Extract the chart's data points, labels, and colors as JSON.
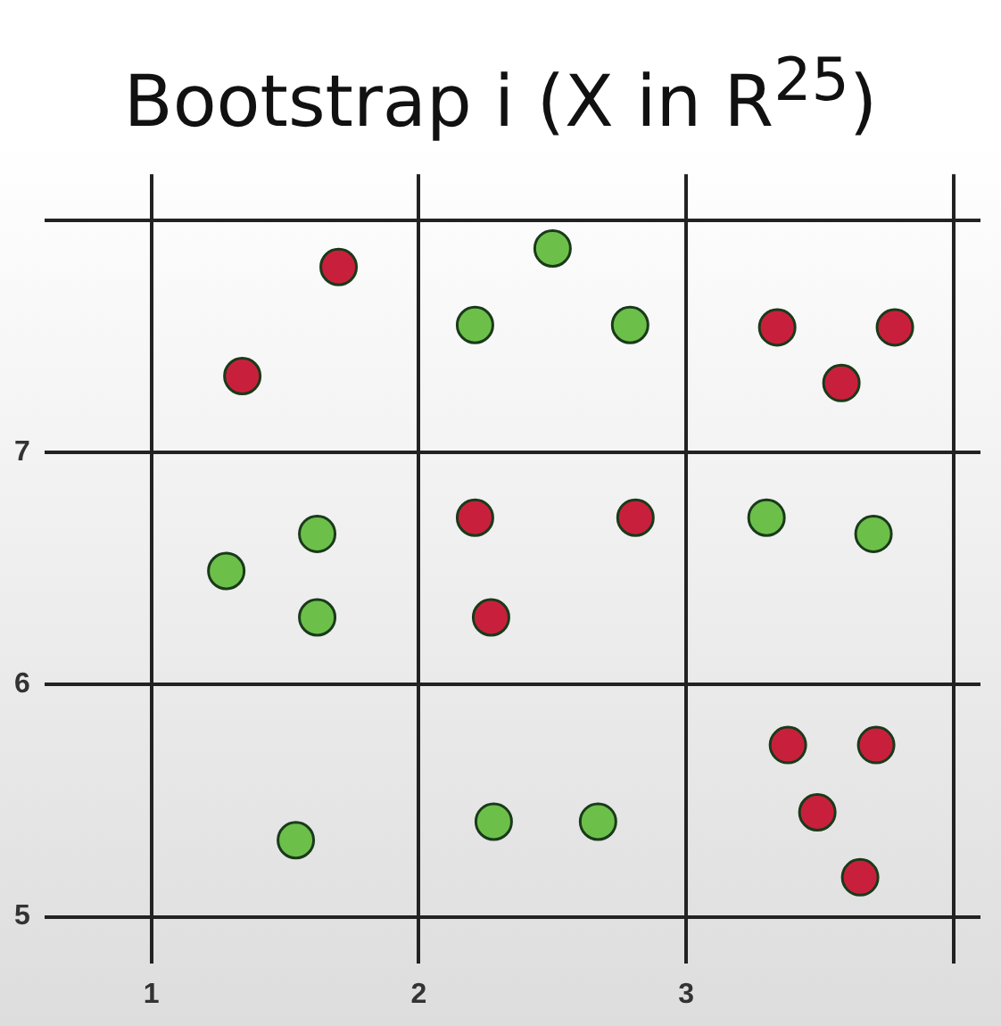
{
  "chart_data": {
    "type": "scatter",
    "title": "Bootstrap i (X in R$^{25}$)",
    "xlim": [
      0.6,
      4.1
    ],
    "ylim": [
      4.8,
      8.2
    ],
    "xticks": [
      1,
      2,
      3,
      {
        "value": 4,
        "label": null
      }
    ],
    "yticks": [
      5,
      6,
      7,
      {
        "value": 8,
        "label": null
      }
    ],
    "grid": true,
    "legend": false,
    "marker": "circle",
    "series": [
      {
        "color": "#c8203c",
        "x": [
          1.7,
          1.34,
          3.34,
          3.78,
          3.58,
          2.21,
          2.81,
          2.27,
          3.38,
          3.71,
          3.49,
          3.65
        ],
        "values": [
          7.8,
          7.33,
          7.54,
          7.54,
          7.3,
          6.72,
          6.72,
          6.29,
          5.74,
          5.74,
          5.45,
          5.17
        ]
      },
      {
        "color": "#6cc04a",
        "x": [
          2.5,
          2.21,
          2.79,
          1.62,
          1.28,
          1.62,
          3.3,
          3.7,
          1.54,
          2.28,
          2.67
        ],
        "values": [
          7.88,
          7.55,
          7.55,
          6.65,
          6.49,
          6.29,
          6.72,
          6.65,
          5.33,
          5.41,
          5.41
        ]
      }
    ]
  }
}
